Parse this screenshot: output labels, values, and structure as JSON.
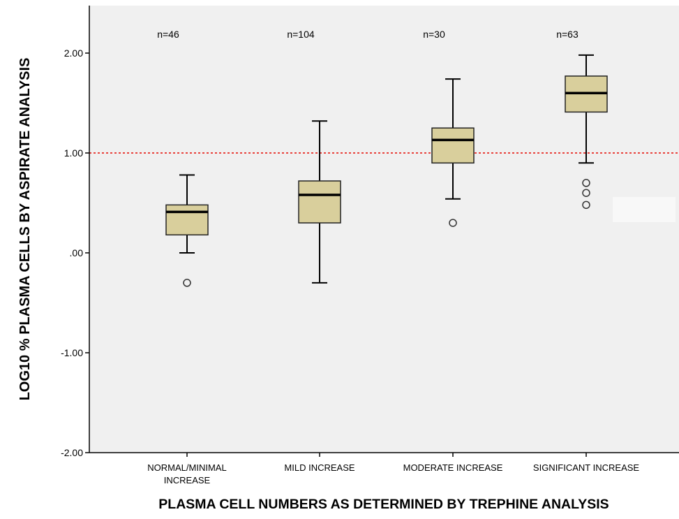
{
  "chart_data": {
    "type": "boxplot",
    "xlabel": "PLASMA CELL NUMBERS AS DETERMINED BY TREPHINE ANALYSIS",
    "ylabel": "LOG10 % PLASMA CELLS BY ASPIRATE ANALYSIS",
    "ylim": [
      -2.0,
      2.4
    ],
    "yticks": [
      -2.0,
      -1.0,
      0.0,
      1.0,
      2.0
    ],
    "ytick_labels": [
      "-2.00",
      "-1.00",
      ".00",
      "1.00",
      "2.00"
    ],
    "grid": false,
    "reference_line": {
      "y": 1.0,
      "style": "dotted",
      "color": "#e8403a"
    },
    "colors": {
      "plot_background": "#f0f0f0",
      "box_fill": "#d9cf9c",
      "axis": "#000000"
    },
    "categories": [
      {
        "label_lines": [
          "NORMAL/MINIMAL",
          "INCREASE"
        ],
        "n_label": "n=46",
        "whisker_low": 0.0,
        "q1": 0.18,
        "median": 0.41,
        "q3": 0.48,
        "whisker_high": 0.78,
        "outliers": [
          -0.3
        ]
      },
      {
        "label_lines": [
          "MILD INCREASE"
        ],
        "n_label": "n=104",
        "whisker_low": -0.3,
        "q1": 0.3,
        "median": 0.58,
        "q3": 0.72,
        "whisker_high": 1.32,
        "outliers": []
      },
      {
        "label_lines": [
          "MODERATE INCREASE"
        ],
        "n_label": "n=30",
        "whisker_low": 0.54,
        "q1": 0.9,
        "median": 1.13,
        "q3": 1.25,
        "whisker_high": 1.74,
        "outliers": [
          0.3
        ]
      },
      {
        "label_lines": [
          "SIGNIFICANT INCREASE"
        ],
        "n_label": "n=63",
        "whisker_low": 0.9,
        "q1": 1.41,
        "median": 1.6,
        "q3": 1.77,
        "whisker_high": 1.98,
        "outliers": [
          0.48,
          0.6,
          0.7
        ]
      }
    ]
  }
}
